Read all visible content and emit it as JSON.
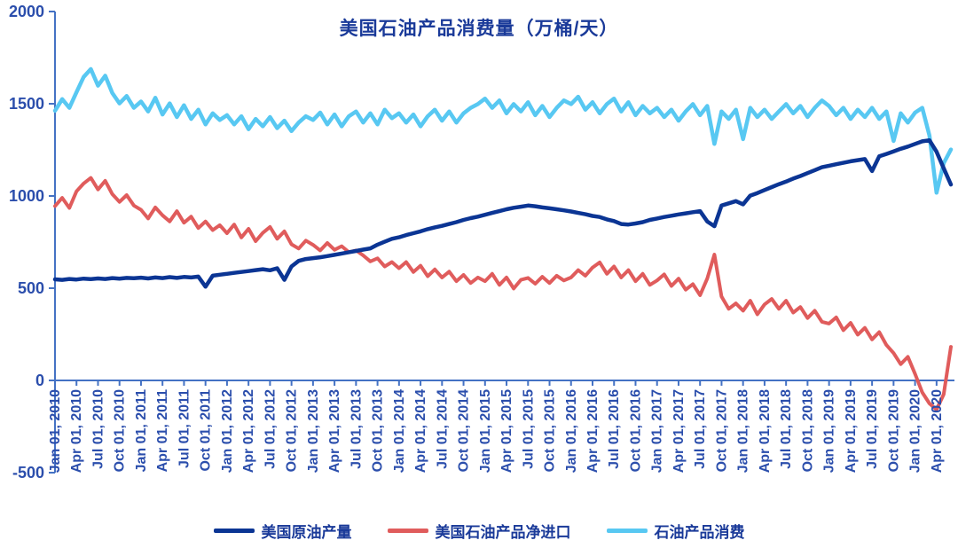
{
  "chart_data": {
    "type": "line",
    "title": "美国石油产品消费量（万桶/天）",
    "xlabel": "",
    "ylabel": "",
    "ylim": [
      -500,
      2000
    ],
    "yticks": [
      2000,
      1500,
      1000,
      500,
      0,
      -500
    ],
    "grid": false,
    "legend_position": "bottom",
    "x_frequency": "monthly_points_with_quarterly_tick_labels",
    "months_per_label": 3,
    "x_labels": [
      "Jan 01, 2010",
      "Apr 01, 2010",
      "Jul 01, 2010",
      "Oct 01, 2010",
      "Jan 01, 2011",
      "Apr 01, 2011",
      "Jul 01, 2011",
      "Oct 01, 2011",
      "Jan 01, 2012",
      "Apr 01, 2012",
      "Jul 01, 2012",
      "Oct 01, 2012",
      "Jan 01, 2013",
      "Apr 01, 2013",
      "Jul 01, 2013",
      "Oct 01, 2013",
      "Jan 01, 2014",
      "Apr 01, 2014",
      "Jul 01, 2014",
      "Oct 01, 2014",
      "Jan 01, 2015",
      "Apr 01, 2015",
      "Jul 01, 2015",
      "Oct 01, 2015",
      "Jan 01, 2016",
      "Apr 01, 2016",
      "Jul 01, 2016",
      "Oct 01, 2016",
      "Jan 01, 2017",
      "Apr 01, 2017",
      "Jul 01, 2017",
      "Oct 01, 2017",
      "Jan 01, 2018",
      "Apr 01, 2018",
      "Jul 01, 2018",
      "Oct 01, 2018",
      "Jan 01, 2019",
      "Apr 01, 2019",
      "Jul 01, 2019",
      "Oct 01, 2019",
      "Jan 01, 2020",
      "Apr 01, 2020"
    ],
    "colors": {
      "axis": "#4472C4",
      "tick_text": "#2B4EAC",
      "title_text": "#1A3A99",
      "legend_text": "#1A3A99",
      "background": "#FFFFFF"
    },
    "series": [
      {
        "name": "美国原油产量",
        "color": "#0B3594",
        "width": 4.5,
        "values": [
          548,
          545,
          550,
          547,
          552,
          549,
          553,
          550,
          555,
          552,
          556,
          554,
          557,
          553,
          558,
          555,
          560,
          556,
          561,
          558,
          563,
          508,
          568,
          573,
          578,
          583,
          588,
          593,
          598,
          603,
          597,
          608,
          545,
          618,
          648,
          658,
          663,
          668,
          674,
          681,
          688,
          695,
          702,
          709,
          716,
          736,
          752,
          768,
          776,
          788,
          798,
          808,
          820,
          830,
          838,
          848,
          858,
          870,
          880,
          888,
          898,
          908,
          918,
          928,
          936,
          942,
          948,
          944,
          938,
          933,
          928,
          922,
          916,
          908,
          901,
          892,
          886,
          873,
          864,
          848,
          845,
          851,
          858,
          870,
          878,
          886,
          893,
          900,
          906,
          912,
          918,
          862,
          836,
          948,
          960,
          972,
          955,
          1002,
          1016,
          1032,
          1048,
          1064,
          1078,
          1094,
          1108,
          1124,
          1140,
          1156,
          1164,
          1172,
          1180,
          1188,
          1194,
          1200,
          1135,
          1215,
          1228,
          1242,
          1256,
          1268,
          1282,
          1296,
          1302,
          1240,
          1150,
          1062
        ]
      },
      {
        "name": "美国石油产品净进口",
        "color": "#E05C5C",
        "width": 4,
        "values": [
          945,
          990,
          935,
          1025,
          1068,
          1098,
          1035,
          1082,
          1010,
          968,
          1005,
          948,
          925,
          878,
          938,
          895,
          862,
          918,
          855,
          888,
          826,
          862,
          815,
          842,
          798,
          845,
          775,
          822,
          755,
          800,
          832,
          768,
          808,
          738,
          715,
          758,
          735,
          705,
          745,
          708,
          728,
          695,
          705,
          678,
          645,
          662,
          618,
          642,
          608,
          642,
          588,
          622,
          565,
          602,
          558,
          590,
          538,
          572,
          528,
          558,
          538,
          578,
          518,
          558,
          498,
          545,
          556,
          524,
          562,
          528,
          568,
          542,
          558,
          598,
          568,
          612,
          640,
          578,
          618,
          558,
          598,
          538,
          578,
          518,
          542,
          575,
          512,
          552,
          492,
          522,
          462,
          552,
          682,
          455,
          388,
          418,
          378,
          432,
          358,
          412,
          442,
          388,
          432,
          368,
          398,
          338,
          378,
          318,
          308,
          342,
          272,
          312,
          248,
          285,
          222,
          262,
          192,
          148,
          88,
          128,
          35,
          -65,
          -125,
          -158,
          -75,
          182
        ]
      },
      {
        "name": "石油产品消费",
        "color": "#58C8F2",
        "width": 4.5,
        "values": [
          1462,
          1525,
          1478,
          1562,
          1645,
          1688,
          1598,
          1652,
          1558,
          1502,
          1542,
          1478,
          1512,
          1458,
          1532,
          1442,
          1502,
          1428,
          1492,
          1418,
          1468,
          1388,
          1448,
          1412,
          1438,
          1388,
          1432,
          1362,
          1418,
          1378,
          1428,
          1368,
          1408,
          1352,
          1398,
          1432,
          1412,
          1452,
          1388,
          1442,
          1378,
          1432,
          1458,
          1398,
          1448,
          1388,
          1468,
          1422,
          1448,
          1398,
          1442,
          1378,
          1432,
          1468,
          1408,
          1458,
          1398,
          1448,
          1478,
          1498,
          1528,
          1478,
          1518,
          1448,
          1498,
          1458,
          1508,
          1438,
          1488,
          1428,
          1478,
          1518,
          1498,
          1538,
          1468,
          1508,
          1448,
          1498,
          1528,
          1458,
          1508,
          1438,
          1488,
          1448,
          1478,
          1428,
          1468,
          1408,
          1458,
          1498,
          1438,
          1488,
          1282,
          1458,
          1418,
          1468,
          1308,
          1478,
          1428,
          1468,
          1418,
          1458,
          1498,
          1448,
          1488,
          1428,
          1478,
          1518,
          1488,
          1438,
          1478,
          1418,
          1468,
          1428,
          1478,
          1418,
          1458,
          1298,
          1448,
          1398,
          1452,
          1478,
          1328,
          1018,
          1178,
          1252
        ]
      }
    ]
  }
}
